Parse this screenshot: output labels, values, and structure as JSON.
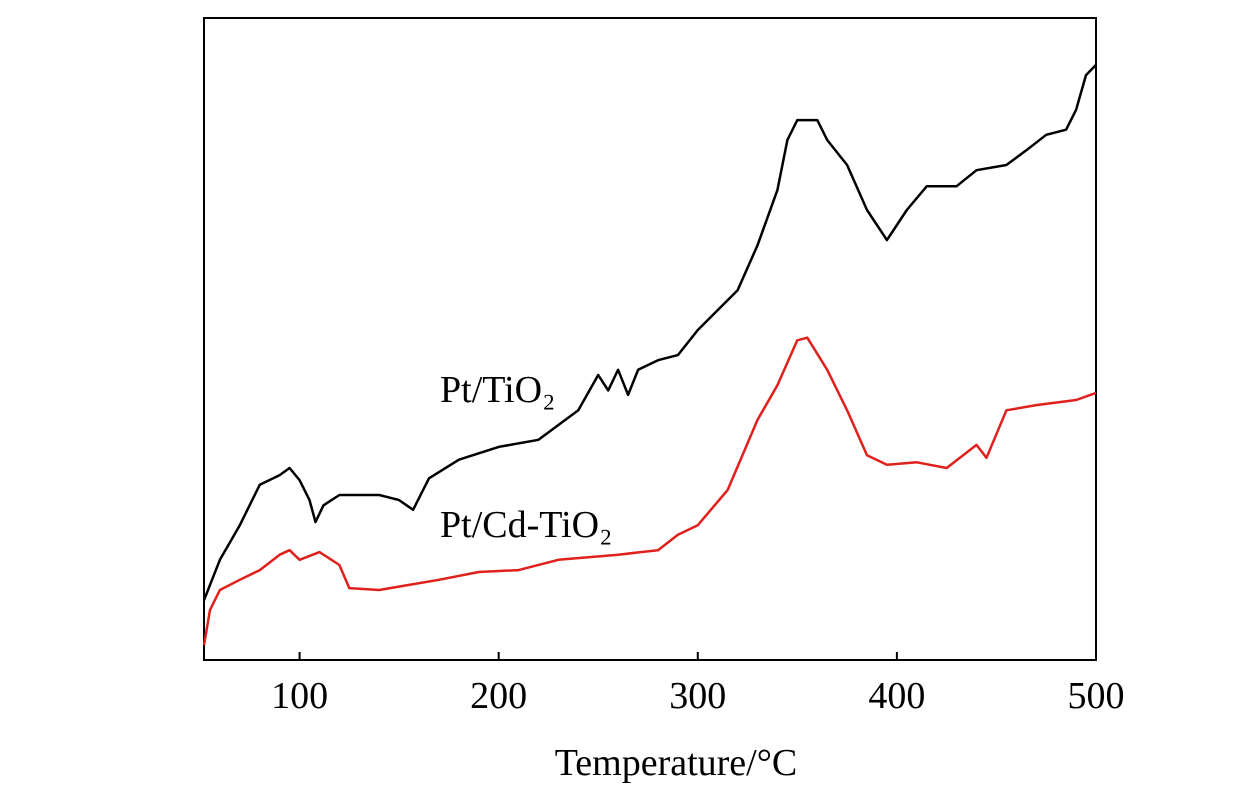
{
  "chart_data": {
    "type": "line",
    "xlabel": "Temperature/°C",
    "xlim": [
      52,
      500
    ],
    "xticks": [
      100,
      200,
      300,
      400,
      500
    ],
    "ylim": [
      0,
      100
    ],
    "annotations": [
      "Pt/TiO₂",
      "Pt/Cd-TiO₂"
    ],
    "series": [
      {
        "name": "Pt/TiO₂",
        "color": "#000000",
        "x": [
          52,
          55,
          60,
          70,
          80,
          90,
          95,
          100,
          105,
          108,
          112,
          120,
          140,
          150,
          157,
          165,
          180,
          200,
          220,
          230,
          240,
          250,
          255,
          260,
          265,
          270,
          280,
          290,
          300,
          310,
          320,
          330,
          340,
          345,
          350,
          360,
          365,
          375,
          385,
          395,
          405,
          415,
          430,
          440,
          455,
          465,
          475,
          485,
          490,
          495,
          500
        ],
        "values": [
          9.3,
          11.7,
          15.6,
          21,
          27.3,
          28.8,
          29.9,
          28,
          24.9,
          21.5,
          24.1,
          25.7,
          25.7,
          24.9,
          23.4,
          28.3,
          31.2,
          33.2,
          34.3,
          36.6,
          38.9,
          44.4,
          42,
          45.2,
          41.3,
          45.2,
          46.7,
          47.5,
          51.4,
          54.5,
          57.6,
          64.6,
          73.2,
          81,
          84.1,
          84.1,
          81,
          77.1,
          70.1,
          65.4,
          70.1,
          73.8,
          73.8,
          76.3,
          77.1,
          79.4,
          81.8,
          82.6,
          85.7,
          91.1,
          92.7
        ]
      },
      {
        "name": "Pt/Cd-TiO₂",
        "color": "#e0201c",
        "x": [
          52,
          55,
          60,
          70,
          80,
          90,
          95,
          100,
          110,
          120,
          125,
          140,
          155,
          170,
          190,
          210,
          230,
          260,
          280,
          290,
          300,
          315,
          330,
          340,
          350,
          355,
          365,
          375,
          385,
          395,
          410,
          425,
          440,
          445,
          455,
          470,
          490,
          500
        ],
        "values": [
          2.3,
          7.8,
          10.9,
          12.5,
          14,
          16.4,
          17.1,
          15.6,
          16.8,
          14.8,
          11.2,
          10.9,
          11.7,
          12.5,
          13.7,
          14,
          15.6,
          16.4,
          17.1,
          19.5,
          21,
          26.5,
          37.4,
          42.8,
          49.8,
          50.2,
          45.2,
          38.9,
          31.9,
          30.4,
          30.8,
          29.9,
          33.5,
          31.5,
          38.9,
          39.7,
          40.5,
          41.6
        ]
      }
    ]
  }
}
